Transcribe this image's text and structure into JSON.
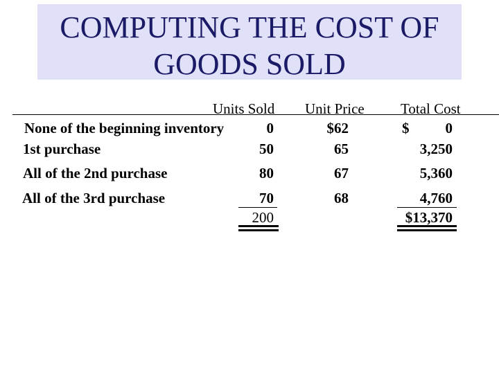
{
  "title": {
    "line1": "COMPUTING THE COST OF",
    "line2": "GOODS SOLD"
  },
  "table": {
    "headers": {
      "units_sold": "Units Sold",
      "unit_price": "Unit Price",
      "total_cost": "Total Cost"
    },
    "rows": [
      {
        "label": "None of the beginning inventory",
        "units": "0",
        "price": "$62",
        "total_symbol": "$",
        "total": "0"
      },
      {
        "label": "1st purchase",
        "units": "50",
        "price": "65",
        "total": "3,250"
      },
      {
        "label": "All of the 2nd purchase",
        "units": "80",
        "price": "67",
        "total": "5,360"
      },
      {
        "label": "All of the 3rd purchase",
        "units": "70",
        "price": "68",
        "total": "4,760"
      }
    ],
    "totals": {
      "units": "200",
      "total": "$13,370"
    }
  }
}
